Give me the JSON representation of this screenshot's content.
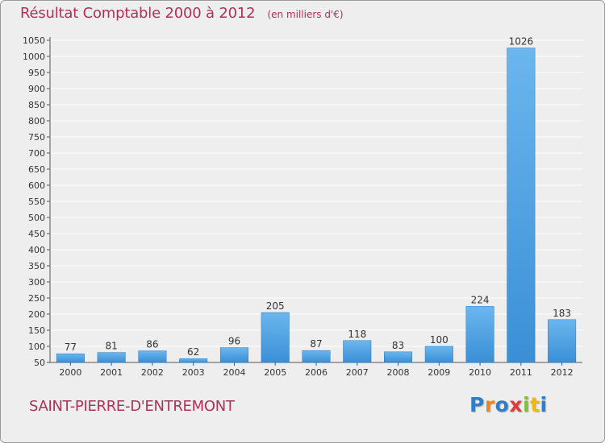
{
  "chart_data": {
    "type": "bar",
    "title": "Résultat Comptable 2000 à 2012",
    "subtitle": "(en milliers d'€)",
    "categories": [
      "2000",
      "2001",
      "2002",
      "2003",
      "2004",
      "2005",
      "2006",
      "2007",
      "2008",
      "2009",
      "2010",
      "2011",
      "2012"
    ],
    "values": [
      77,
      81,
      86,
      62,
      96,
      205,
      87,
      118,
      83,
      100,
      224,
      1026,
      183
    ],
    "ylim": [
      50,
      1050
    ],
    "ytick_step": 50,
    "grid": true,
    "xlabel": "",
    "ylabel": "",
    "bar_color": "#3a8fd6",
    "bar_highlight_color": "#6bb6ee"
  },
  "commune": "SAINT-PIERRE-D'ENTREMONT",
  "logo": {
    "letters": [
      "P",
      "r",
      "o",
      "x",
      "i",
      "t",
      "i"
    ],
    "colors": [
      "#2f7fc8",
      "#e8862a",
      "#2f7fc8",
      "#e23b3b",
      "#7fbf3a",
      "#f2b90c",
      "#2f7fc8"
    ]
  },
  "colors": {
    "title": "#b0305a",
    "background": "#eeeeee",
    "grid": "#ffffff"
  }
}
